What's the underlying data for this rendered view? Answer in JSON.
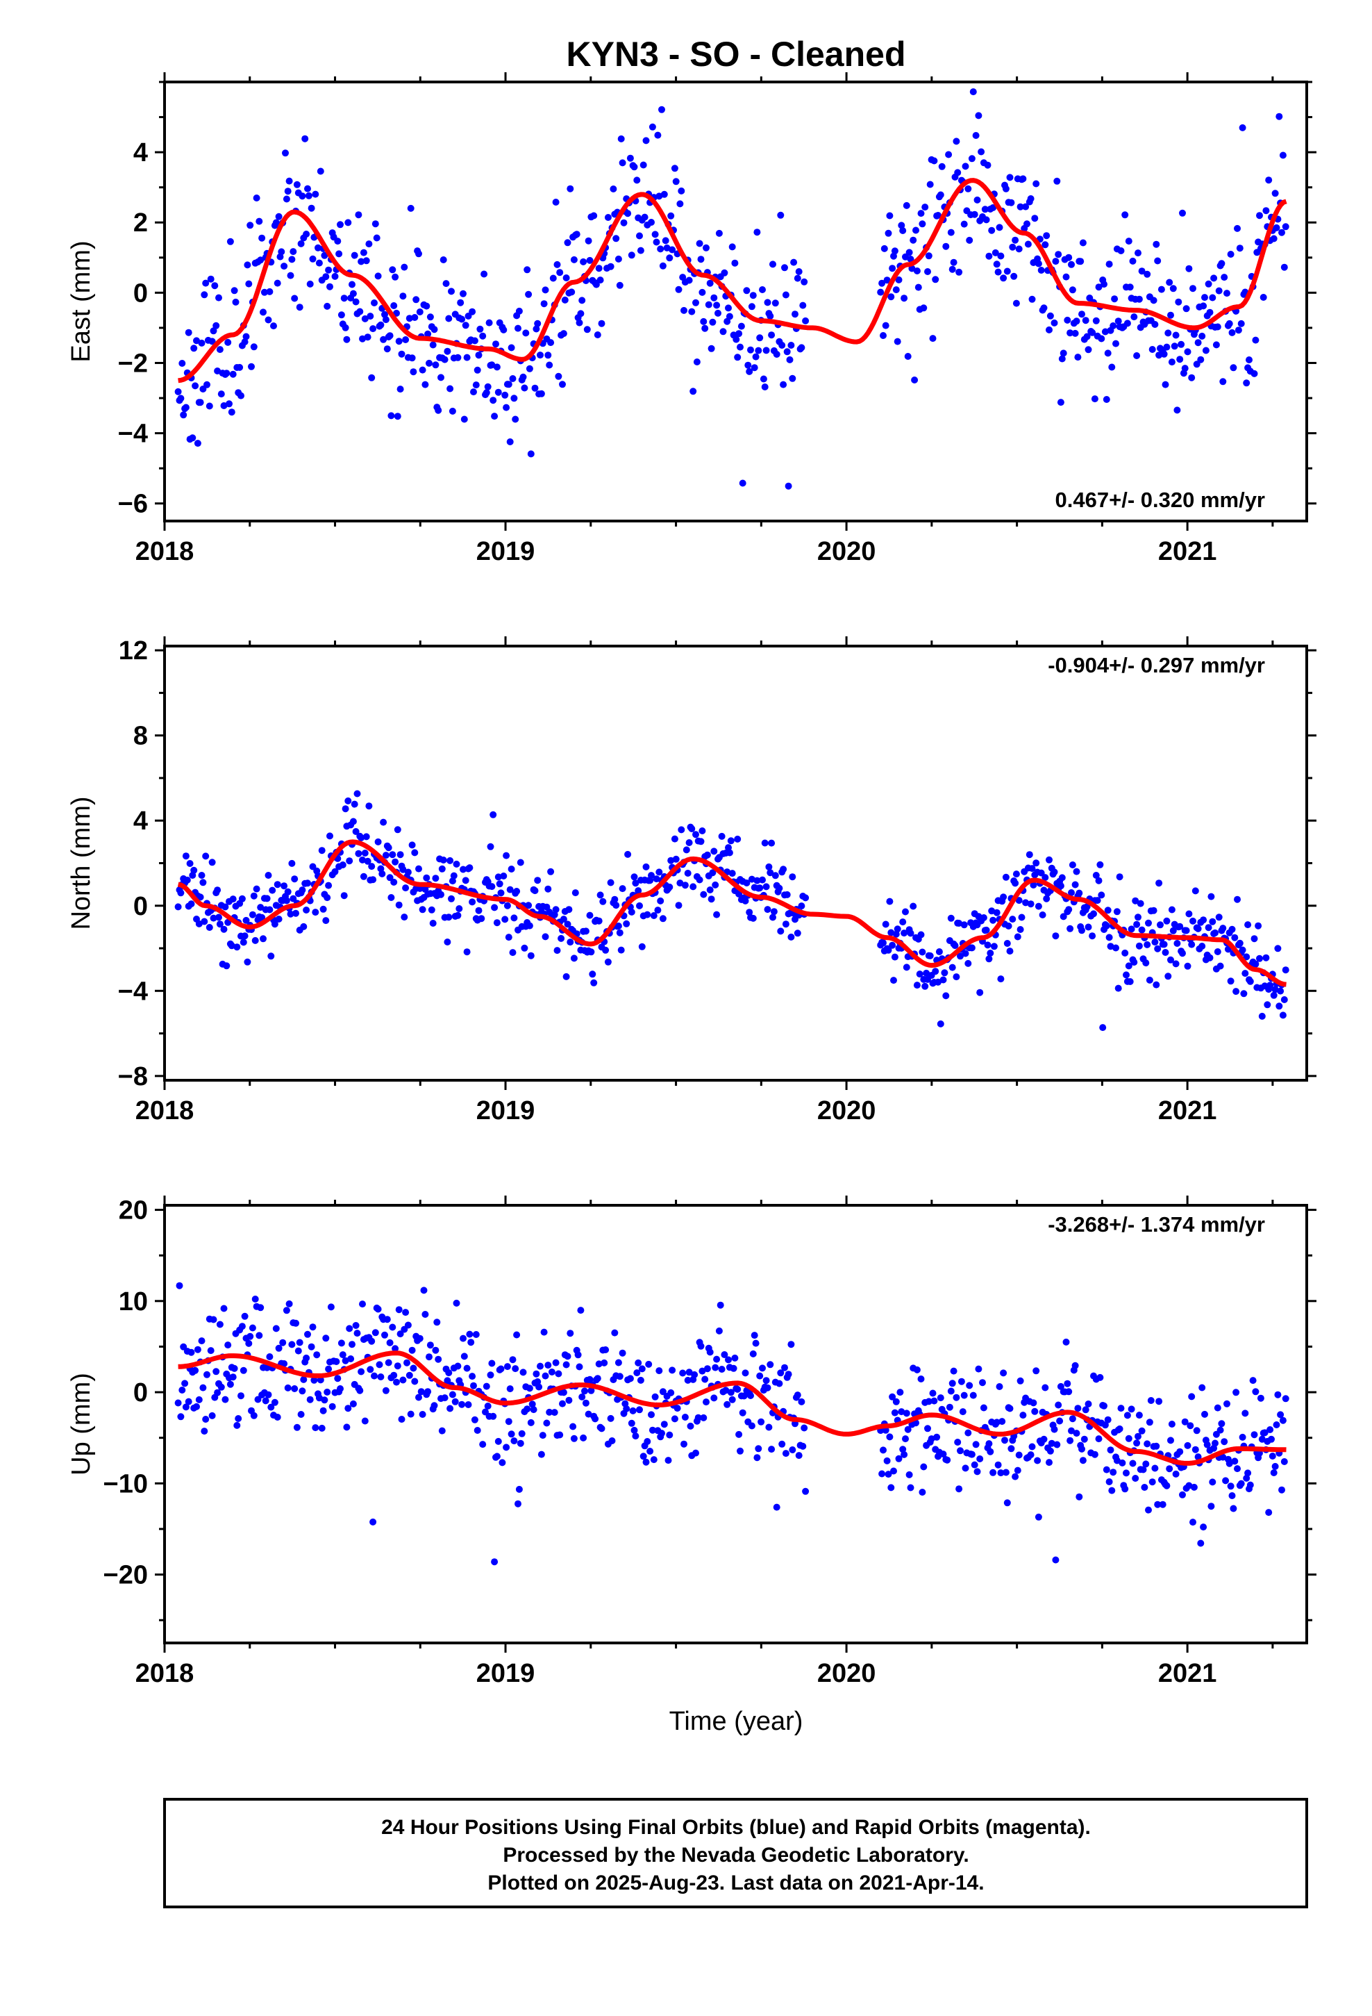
{
  "figure": {
    "title": "KYN3  - SO - Cleaned",
    "xlabel": "Time (year)",
    "footer": [
      "24 Hour Positions Using Final Orbits (blue) and Rapid Orbits (magenta).",
      "Processed by the Nevada Geodetic Laboratory.",
      "Plotted on 2025-Aug-23. Last data on 2021-Apr-14."
    ],
    "colors": {
      "final_orbits": "#0000ff",
      "rapid_orbits": "#ff00ff",
      "fit": "#ff0000",
      "frame": "#000000"
    }
  },
  "chart_data": [
    {
      "type": "scatter",
      "panel": "east",
      "ylabel": "East (mm)",
      "rate_label": "0.467+/- 0.320 mm/yr",
      "rate_position": "bottom-right",
      "xlim": [
        2018.0,
        2021.35
      ],
      "ylim": [
        -6.5,
        6.0
      ],
      "xticks": [
        2018,
        2019,
        2020,
        2021
      ],
      "yticks": [
        -6,
        -4,
        -2,
        0,
        2,
        4
      ],
      "grid": false,
      "series": [
        {
          "kind": "points",
          "color": "#0000ff",
          "generator": {
            "segments": [
              [
                2018.04,
                2019.88
              ],
              [
                2020.1,
                2021.29
              ]
            ],
            "spacing_days": 1.4,
            "noise_sd": 1.15,
            "seed": 11
          }
        },
        {
          "kind": "line",
          "color": "#ff0000",
          "x": [
            2018.04,
            2018.2,
            2018.38,
            2018.55,
            2018.75,
            2018.95,
            2019.05,
            2019.2,
            2019.4,
            2019.58,
            2019.75,
            2019.9,
            2020.03,
            2020.18,
            2020.37,
            2020.52,
            2020.68,
            2020.85,
            2021.02,
            2021.15,
            2021.29
          ],
          "y": [
            -2.5,
            -1.2,
            2.3,
            0.5,
            -1.3,
            -1.6,
            -1.9,
            0.3,
            2.8,
            0.5,
            -0.8,
            -1.0,
            -1.4,
            0.8,
            3.2,
            1.7,
            -0.3,
            -0.5,
            -1.0,
            -0.4,
            2.6
          ]
        }
      ]
    },
    {
      "type": "scatter",
      "panel": "north",
      "ylabel": "North (mm)",
      "rate_label": "-0.904+/- 0.297 mm/yr",
      "rate_position": "top-right",
      "xlim": [
        2018.0,
        2021.35
      ],
      "ylim": [
        -8.2,
        12.2
      ],
      "xticks": [
        2018,
        2019,
        2020,
        2021
      ],
      "yticks": [
        -8,
        -4,
        0,
        4,
        8,
        12
      ],
      "grid": false,
      "series": [
        {
          "kind": "points",
          "color": "#0000ff",
          "generator": {
            "segments": [
              [
                2018.04,
                2019.88
              ],
              [
                2020.1,
                2021.29
              ]
            ],
            "spacing_days": 1.4,
            "noise_sd": 0.95,
            "seed": 23
          }
        },
        {
          "kind": "line",
          "color": "#ff0000",
          "x": [
            2018.04,
            2018.12,
            2018.25,
            2018.38,
            2018.55,
            2018.75,
            2019.0,
            2019.1,
            2019.25,
            2019.4,
            2019.55,
            2019.75,
            2019.9,
            2020.0,
            2020.12,
            2020.25,
            2020.4,
            2020.55,
            2020.68,
            2020.85,
            2021.0,
            2021.1,
            2021.2,
            2021.29
          ],
          "y": [
            1.0,
            0.0,
            -1.0,
            0.0,
            3.0,
            1.0,
            0.3,
            -0.5,
            -1.8,
            0.5,
            2.2,
            0.4,
            -0.4,
            -0.5,
            -1.5,
            -2.8,
            -1.5,
            1.2,
            0.3,
            -1.4,
            -1.5,
            -1.6,
            -3.0,
            -3.7
          ]
        }
      ]
    },
    {
      "type": "scatter",
      "panel": "up",
      "ylabel": "Up (mm)",
      "rate_label": "-3.268+/- 1.374 mm/yr",
      "rate_position": "top-right",
      "xlim": [
        2018.0,
        2021.35
      ],
      "ylim": [
        -27.5,
        20.5
      ],
      "xticks": [
        2018,
        2019,
        2020,
        2021
      ],
      "yticks": [
        -20,
        -10,
        0,
        10,
        20
      ],
      "grid": false,
      "series": [
        {
          "kind": "points",
          "color": "#0000ff",
          "generator": {
            "segments": [
              [
                2018.04,
                2019.88
              ],
              [
                2020.1,
                2021.29
              ]
            ],
            "spacing_days": 1.4,
            "noise_sd": 3.6,
            "seed": 37
          }
        },
        {
          "kind": "line",
          "color": "#ff0000",
          "x": [
            2018.04,
            2018.2,
            2018.45,
            2018.68,
            2018.85,
            2019.0,
            2019.22,
            2019.45,
            2019.68,
            2019.85,
            2020.0,
            2020.12,
            2020.25,
            2020.45,
            2020.65,
            2020.85,
            2021.0,
            2021.15,
            2021.29
          ],
          "y": [
            2.8,
            4.0,
            1.8,
            4.3,
            0.5,
            -1.2,
            0.8,
            -1.4,
            1.0,
            -3.0,
            -4.6,
            -3.7,
            -2.5,
            -4.6,
            -2.2,
            -6.5,
            -7.8,
            -6.2,
            -6.3
          ]
        }
      ]
    }
  ]
}
